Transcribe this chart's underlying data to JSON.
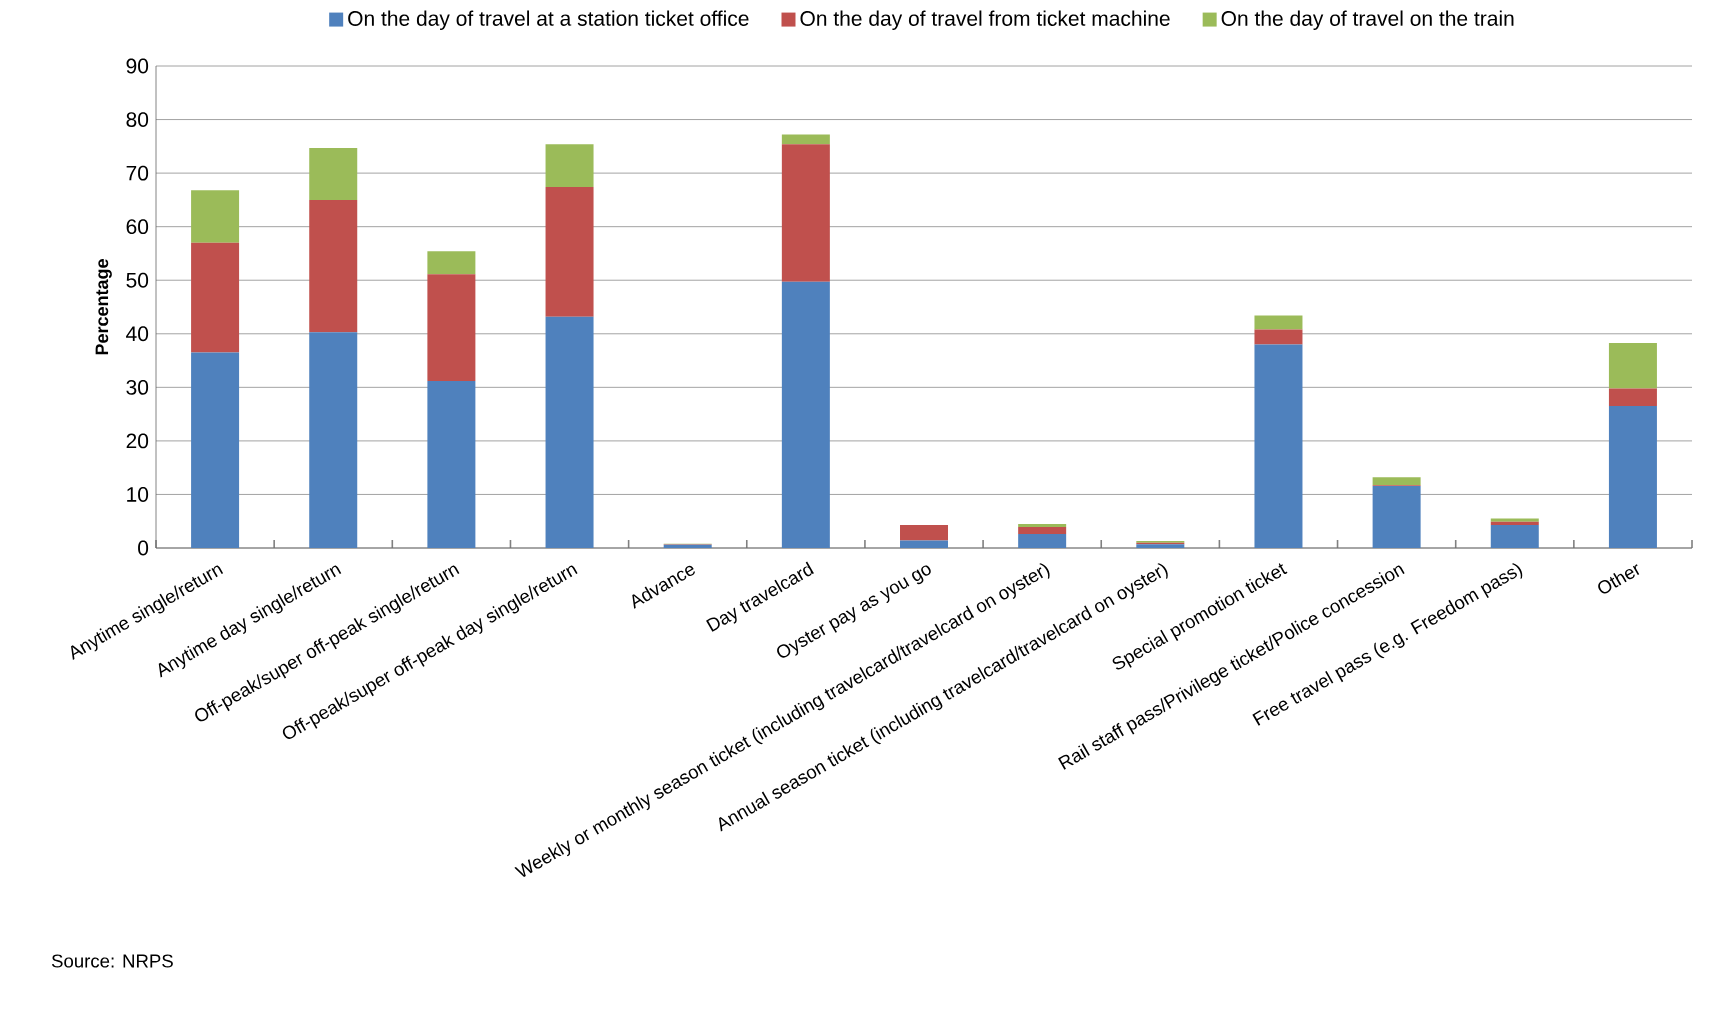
{
  "chart_data": {
    "type": "bar",
    "stacked": true,
    "ylabel": "Percentage",
    "categories": [
      "Anytime single/return",
      "Anytime day single/return",
      "Off-peak/super off-peak single/return",
      "Off-peak/super off-peak day single/return",
      "Advance",
      "Day travelcard",
      "Oyster pay as you go",
      "Weekly or monthly season ticket (including travelcard/travelcard on oyster)",
      "Annual season ticket (including travelcard/travelcard on oyster)",
      "Special promotion ticket",
      "Rail staff pass/Privilege ticket/Police concession",
      "Free travel pass (e.g. Freedom pass)",
      "Other"
    ],
    "series": [
      {
        "name": "On the day of travel at a station ticket office",
        "color": "#4f81bd",
        "values": [
          36.5,
          40.3,
          31.2,
          43.2,
          0.6,
          49.7,
          1.4,
          2.6,
          0.7,
          38.0,
          11.6,
          4.3,
          26.5
        ]
      },
      {
        "name": "On the day of travel from ticket machine",
        "color": "#c0504d",
        "values": [
          20.5,
          24.7,
          19.9,
          24.2,
          0.1,
          25.7,
          2.9,
          1.3,
          0.3,
          2.8,
          0.1,
          0.6,
          3.3
        ]
      },
      {
        "name": "On the day of travel on the train",
        "color": "#9bbb59",
        "values": [
          9.8,
          9.7,
          4.3,
          8.0,
          0.1,
          1.8,
          0,
          0.6,
          0.3,
          2.6,
          1.5,
          0.6,
          8.5
        ]
      }
    ],
    "ylim": [
      0,
      90
    ],
    "yticks": [
      0,
      10,
      20,
      30,
      40,
      50,
      60,
      70,
      80,
      90
    ],
    "grid": "y",
    "legend": "top",
    "annotations": [
      "Source: NRPS"
    ]
  }
}
